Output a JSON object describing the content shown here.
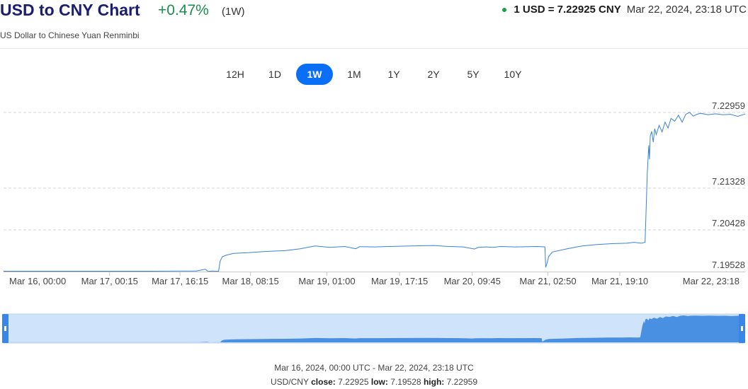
{
  "header": {
    "title": "USD to CNY Chart",
    "change": "+0.47%",
    "period": "(1W)",
    "subtitle": "US Dollar to Chinese Yuan Renminbi",
    "rate": "1 USD = 7.22925 CNY",
    "timestamp": "Mar 22, 2024, 23:18 UTC"
  },
  "tabs": [
    {
      "label": "12H",
      "active": false
    },
    {
      "label": "1D",
      "active": false
    },
    {
      "label": "1W",
      "active": true
    },
    {
      "label": "1M",
      "active": false
    },
    {
      "label": "1Y",
      "active": false
    },
    {
      "label": "2Y",
      "active": false
    },
    {
      "label": "5Y",
      "active": false
    },
    {
      "label": "10Y",
      "active": false
    }
  ],
  "footer": {
    "range": "Mar 16, 2024, 00:00 UTC - Mar 22, 2024, 23:18 UTC",
    "pair": "USD/CNY",
    "close_label": "close:",
    "close": "7.22925",
    "low_label": "low:",
    "low": "7.19528",
    "high_label": "high:",
    "high": "7.22959"
  },
  "colors": {
    "line": "#3b82d6",
    "navigator_fill": "#4a90e2",
    "navigator_bg": "#cfe3fb",
    "active_tab": "#0a6ff5",
    "positive": "#1d8c4f",
    "title": "#1a1e6e"
  },
  "chart_data": {
    "type": "line",
    "y_ticks": [
      7.19528,
      7.20428,
      7.21328,
      7.22959
    ],
    "ylim": [
      7.19528,
      7.22959
    ],
    "x_tick_labels": [
      "Mar 16, 00:00",
      "Mar 17, 00:15",
      "Mar 17, 16:15",
      "Mar 18, 08:15",
      "Mar 19, 01:00",
      "Mar 19, 17:15",
      "Mar 20, 09:45",
      "Mar 21, 02:50",
      "Mar 21, 19:10",
      "Mar 22, 23:18"
    ],
    "x_tick_positions": [
      0.0,
      0.143,
      0.238,
      0.333,
      0.436,
      0.534,
      0.632,
      0.734,
      0.831,
      1.0
    ],
    "series": [
      {
        "x": [
          0.0,
          0.1,
          0.2,
          0.26,
          0.272,
          0.276,
          0.28,
          0.29,
          0.292,
          0.295,
          0.3,
          0.31,
          0.33,
          0.35,
          0.38,
          0.4,
          0.42,
          0.44,
          0.46,
          0.475,
          0.48,
          0.5,
          0.52,
          0.55,
          0.58,
          0.6,
          0.62,
          0.635,
          0.64,
          0.65,
          0.66,
          0.67,
          0.69,
          0.72,
          0.73,
          0.731,
          0.733,
          0.735,
          0.74,
          0.76,
          0.78,
          0.8,
          0.82,
          0.84,
          0.85,
          0.86,
          0.865,
          0.868,
          0.87,
          0.871,
          0.872,
          0.874,
          0.876,
          0.878,
          0.88,
          0.884,
          0.888,
          0.892,
          0.896,
          0.9,
          0.905,
          0.91,
          0.915,
          0.92,
          0.925,
          0.93,
          0.935,
          0.94,
          0.95,
          0.96,
          0.97,
          0.98,
          0.99,
          1.0
        ],
        "y": [
          7.19535,
          7.19535,
          7.19535,
          7.1954,
          7.1958,
          7.1953,
          7.1954,
          7.19535,
          7.1975,
          7.1985,
          7.1988,
          7.1992,
          7.19935,
          7.1996,
          7.1998,
          7.2002,
          7.2008,
          7.2005,
          7.2007,
          7.2002,
          7.20065,
          7.2006,
          7.2007,
          7.2008,
          7.2009,
          7.2007,
          7.2006,
          7.20015,
          7.2005,
          7.2006,
          7.2005,
          7.2007,
          7.2006,
          7.2007,
          7.2006,
          7.1962,
          7.1972,
          7.1985,
          7.1995,
          7.2002,
          7.2008,
          7.2011,
          7.2013,
          7.2014,
          7.2016,
          7.2014,
          7.2016,
          7.2165,
          7.2225,
          7.2195,
          7.2245,
          7.2255,
          7.2232,
          7.2261,
          7.2248,
          7.2268,
          7.2254,
          7.2275,
          7.2262,
          7.2283,
          7.2277,
          7.229,
          7.2275,
          7.2292,
          7.2296,
          7.2288,
          7.2292,
          7.2294,
          7.2291,
          7.2293,
          7.2291,
          7.2292,
          7.22875,
          7.22925
        ]
      }
    ]
  }
}
